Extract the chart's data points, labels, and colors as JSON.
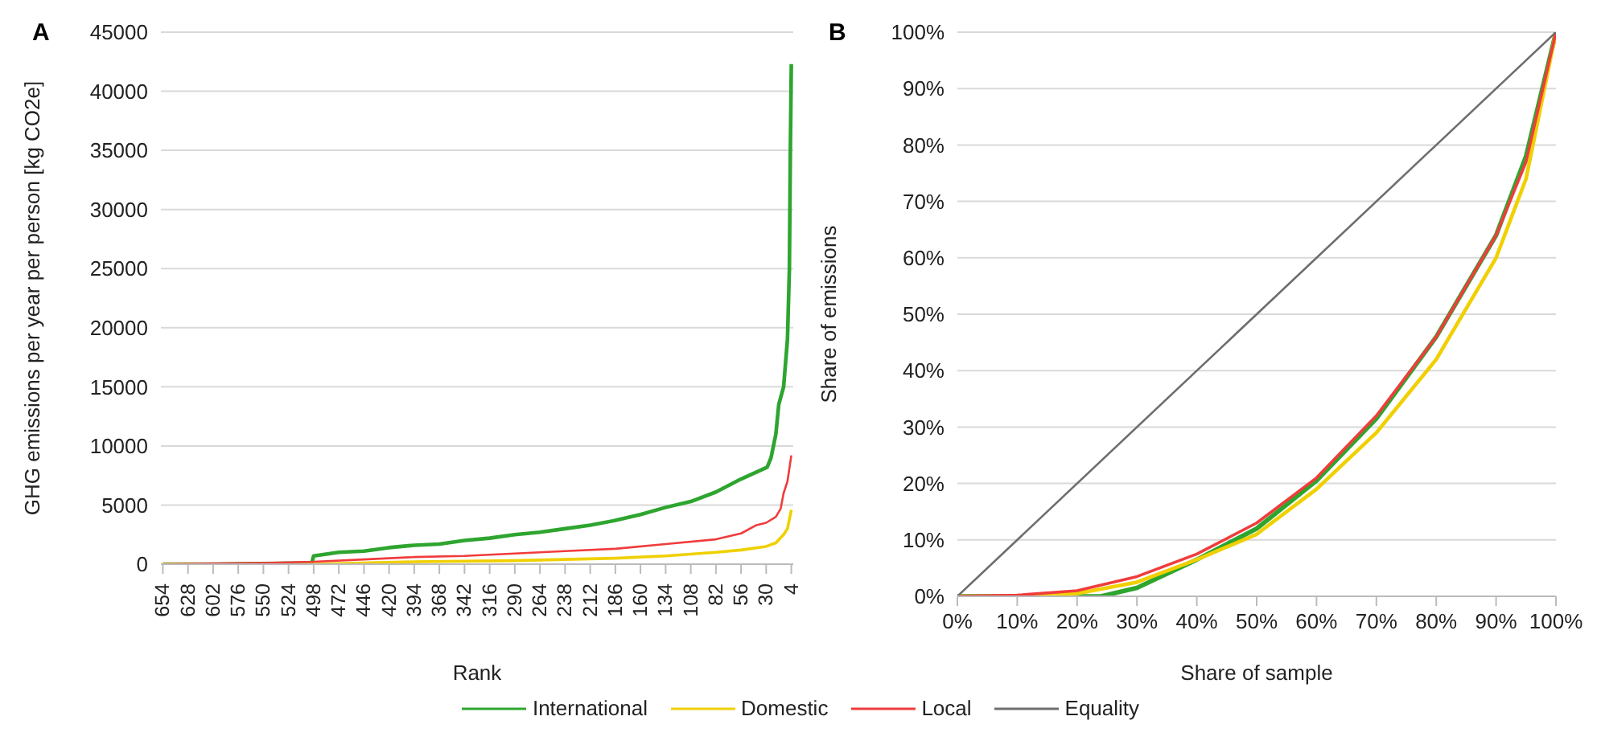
{
  "chart_data": [
    {
      "type": "line",
      "title": "A",
      "xlabel": "Rank",
      "ylabel": "GHG emissions per year per person [kg CO2e]",
      "xlim": [
        656,
        2
      ],
      "xticks": [
        654,
        628,
        602,
        576,
        550,
        524,
        498,
        472,
        446,
        420,
        394,
        368,
        342,
        316,
        290,
        264,
        238,
        212,
        186,
        160,
        134,
        108,
        82,
        56,
        30,
        4
      ],
      "ylim": [
        0,
        45000
      ],
      "yticks": [
        0,
        5000,
        10000,
        15000,
        20000,
        25000,
        30000,
        35000,
        40000,
        45000
      ],
      "grid": "y",
      "marker": "none",
      "legend": "bottom",
      "series": [
        {
          "name": "International",
          "color": "#2ea52e",
          "x": [
            654,
            600,
            500,
            498,
            472,
            446,
            420,
            394,
            368,
            342,
            316,
            290,
            264,
            238,
            212,
            186,
            160,
            134,
            108,
            82,
            56,
            29,
            25,
            20,
            17,
            12,
            8,
            6,
            5,
            4
          ],
          "values": [
            0,
            0,
            100,
            700,
            1000,
            1100,
            1400,
            1600,
            1700,
            2000,
            2200,
            2500,
            2700,
            3000,
            3300,
            3700,
            4200,
            4800,
            5300,
            6100,
            7200,
            8200,
            9000,
            11000,
            13500,
            15000,
            19000,
            25000,
            35000,
            42300
          ]
        },
        {
          "name": "Domestic",
          "color": "#f0d000",
          "x": [
            654,
            498,
            394,
            290,
            186,
            134,
            82,
            56,
            30,
            20,
            12,
            8,
            4
          ],
          "values": [
            0,
            0,
            200,
            300,
            500,
            700,
            1000,
            1200,
            1500,
            1800,
            2500,
            3000,
            4600
          ]
        },
        {
          "name": "Local",
          "color": "#f03c3c",
          "x": [
            654,
            550,
            498,
            446,
            394,
            342,
            290,
            238,
            186,
            134,
            82,
            56,
            40,
            30,
            20,
            15,
            12,
            8,
            4
          ],
          "values": [
            0,
            100,
            200,
            400,
            600,
            700,
            900,
            1100,
            1300,
            1700,
            2100,
            2600,
            3300,
            3500,
            4000,
            4700,
            6000,
            7000,
            9200
          ]
        }
      ]
    },
    {
      "type": "line",
      "title": "B",
      "xlabel": "Share of sample",
      "ylabel": "Share of emissions",
      "xlim": [
        0,
        100
      ],
      "xticks": [
        {
          "value": 0,
          "label": "0%"
        },
        {
          "value": 10,
          "label": "10%"
        },
        {
          "value": 20,
          "label": "20%"
        },
        {
          "value": 30,
          "label": "30%"
        },
        {
          "value": 40,
          "label": "40%"
        },
        {
          "value": 50,
          "label": "50%"
        },
        {
          "value": 60,
          "label": "60%"
        },
        {
          "value": 70,
          "label": "70%"
        },
        {
          "value": 80,
          "label": "80%"
        },
        {
          "value": 90,
          "label": "90%"
        },
        {
          "value": 100,
          "label": "100%"
        }
      ],
      "ylim": [
        0,
        100
      ],
      "yticks": [
        {
          "value": 0,
          "label": "0%"
        },
        {
          "value": 10,
          "label": "10%"
        },
        {
          "value": 20,
          "label": "20%"
        },
        {
          "value": 30,
          "label": "30%"
        },
        {
          "value": 40,
          "label": "40%"
        },
        {
          "value": 50,
          "label": "50%"
        },
        {
          "value": 60,
          "label": "60%"
        },
        {
          "value": 70,
          "label": "70%"
        },
        {
          "value": 80,
          "label": "80%"
        },
        {
          "value": 90,
          "label": "90%"
        },
        {
          "value": 100,
          "label": "100%"
        }
      ],
      "grid": "y",
      "marker": "none",
      "legend": "bottom",
      "series": [
        {
          "name": "International",
          "color": "#2ea52e",
          "x": [
            0,
            24,
            30,
            40,
            50,
            60,
            70,
            80,
            90,
            95,
            100
          ],
          "values": [
            0,
            0,
            1.5,
            6.5,
            12,
            20.5,
            31.5,
            46,
            64,
            78,
            100
          ]
        },
        {
          "name": "Domestic",
          "color": "#f0d000",
          "x": [
            0,
            10,
            20,
            30,
            40,
            50,
            60,
            70,
            80,
            90,
            95,
            100
          ],
          "values": [
            0,
            0,
            0.5,
            2.5,
            6.5,
            11,
            19,
            29,
            42,
            60,
            74,
            100
          ]
        },
        {
          "name": "Local",
          "color": "#f03c3c",
          "x": [
            0,
            10,
            20,
            30,
            40,
            50,
            60,
            70,
            80,
            90,
            95,
            100
          ],
          "values": [
            0,
            0.2,
            1,
            3.5,
            7.5,
            13,
            21,
            32,
            46,
            64,
            77,
            100
          ]
        },
        {
          "name": "Equality",
          "color": "#6e6e6e",
          "x": [
            0,
            100
          ],
          "values": [
            0,
            100
          ]
        }
      ]
    }
  ]
}
